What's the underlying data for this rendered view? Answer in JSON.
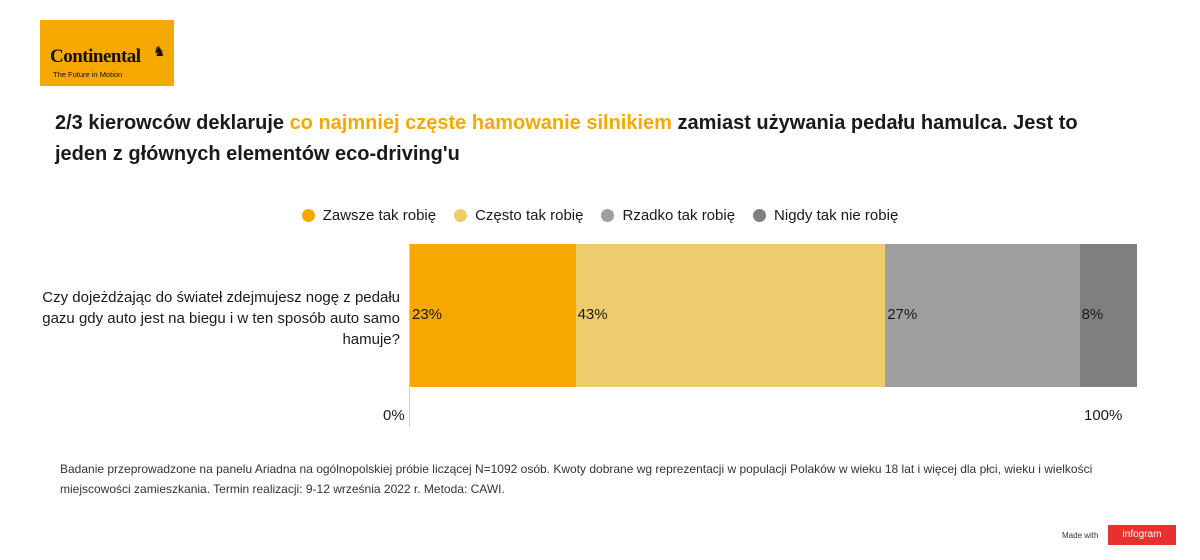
{
  "logo": {
    "brand": "Continental",
    "tagline": "The Future in Motion"
  },
  "title": {
    "part1": "2/3 kierowców deklaruje ",
    "highlight": "co najmniej częste hamowanie silnikiem",
    "part2": " zamiast używania pedału hamulca. Jest to jeden z głównych elementów eco-driving'u"
  },
  "chart_data": {
    "type": "bar",
    "orientation": "horizontal-stacked-100",
    "categories": [
      "Czy dojeżdżając do świateł zdejmujesz nogę z pedału gazu gdy auto jest na biegu i w ten sposób auto samo hamuje?"
    ],
    "series": [
      {
        "name": "Zawsze tak robię",
        "values": [
          23
        ],
        "label": "23%",
        "color": "#f5a800"
      },
      {
        "name": "Często tak robię",
        "values": [
          43
        ],
        "label": "43%",
        "color": "#eecb6c"
      },
      {
        "name": "Rzadko tak robię",
        "values": [
          27
        ],
        "label": "27%",
        "color": "#9e9e9e"
      },
      {
        "name": "Nigdy tak nie robię",
        "values": [
          8
        ],
        "label": "8%",
        "color": "#7f7f7f"
      }
    ],
    "xlim": [
      0,
      100
    ],
    "ticks": [
      "0%",
      "100%"
    ],
    "legend_position": "top",
    "grid": false
  },
  "footnote": "Badanie przeprowadzone na panelu Ariadna na ogólnopolskiej próbie liczącej N=1092 osób. Kwoty dobrane wg reprezentacji w populacji Polaków w wieku 18 lat i więcej dla płci, wieku i wielkości miejscowości zamieszkania. Termin realizacji: 9-12 września 2022 r. Metoda: CAWI.",
  "credit": {
    "made_with": "Made with",
    "brand": "infogram"
  }
}
